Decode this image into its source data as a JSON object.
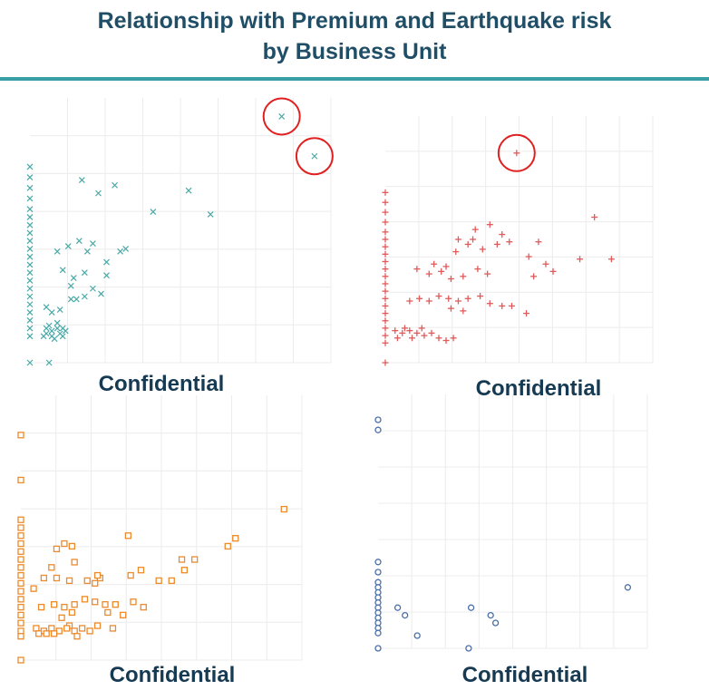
{
  "header": {
    "title_line1": "Relationship with Premium and Earthquake risk",
    "title_line2": "by Business Unit",
    "rule_color": "#3a9ea5"
  },
  "panels": [
    {
      "caption": "Confidential"
    },
    {
      "caption": "Confidential"
    },
    {
      "caption": "Confidential"
    },
    {
      "caption": "Confidential"
    }
  ],
  "chart_data": [
    {
      "type": "scatter",
      "marker": "x",
      "color": "#4aa9a6",
      "grid": true,
      "highlighted_outliers": [
        [
          9.2,
          9.3
        ],
        [
          10.4,
          7.8
        ]
      ],
      "points": [
        [
          0,
          7.4
        ],
        [
          0,
          7.0
        ],
        [
          0,
          6.6
        ],
        [
          0,
          6.2
        ],
        [
          0,
          5.8
        ],
        [
          0,
          5.5
        ],
        [
          0,
          5.2
        ],
        [
          0,
          4.9
        ],
        [
          0,
          4.6
        ],
        [
          0,
          4.3
        ],
        [
          0,
          4.0
        ],
        [
          0,
          3.7
        ],
        [
          0,
          3.4
        ],
        [
          0,
          3.1
        ],
        [
          0,
          2.8
        ],
        [
          0,
          2.5
        ],
        [
          0,
          2.2
        ],
        [
          0,
          1.9
        ],
        [
          0,
          1.6
        ],
        [
          0,
          1.3
        ],
        [
          0,
          1.0
        ],
        [
          0,
          0.0
        ],
        [
          1.9,
          6.9
        ],
        [
          2.5,
          6.4
        ],
        [
          3.1,
          6.7
        ],
        [
          4.5,
          5.7
        ],
        [
          5.8,
          6.5
        ],
        [
          6.6,
          5.6
        ],
        [
          1.0,
          4.2
        ],
        [
          1.4,
          4.4
        ],
        [
          1.8,
          4.6
        ],
        [
          2.1,
          4.2
        ],
        [
          2.3,
          4.5
        ],
        [
          2.8,
          3.8
        ],
        [
          3.3,
          4.2
        ],
        [
          3.5,
          4.3
        ],
        [
          1.2,
          3.5
        ],
        [
          1.6,
          3.2
        ],
        [
          2.0,
          3.4
        ],
        [
          2.8,
          3.3
        ],
        [
          1.5,
          2.9
        ],
        [
          2.3,
          2.8
        ],
        [
          2.6,
          2.6
        ],
        [
          1.5,
          2.4
        ],
        [
          1.7,
          2.4
        ],
        [
          1.1,
          2.0
        ],
        [
          0.8,
          1.9
        ],
        [
          0.6,
          2.1
        ],
        [
          2.0,
          2.5
        ],
        [
          0.6,
          1.1
        ],
        [
          0.8,
          1.2
        ],
        [
          1.0,
          1.3
        ],
        [
          1.2,
          1.0
        ],
        [
          0.7,
          1.4
        ],
        [
          1.1,
          1.1
        ],
        [
          0.9,
          0.9
        ],
        [
          1.3,
          1.2
        ],
        [
          0.5,
          1.0
        ],
        [
          1.0,
          1.5
        ],
        [
          0.8,
          1.0
        ],
        [
          1.2,
          1.3
        ],
        [
          0.6,
          1.3
        ],
        [
          0.7,
          0.0
        ]
      ]
    },
    {
      "type": "scatter",
      "marker": "+",
      "color": "#e05a5a",
      "grid": true,
      "highlighted_outliers": [
        [
          5.4,
          8.5
        ]
      ],
      "points": [
        [
          0,
          6.9
        ],
        [
          0,
          6.5
        ],
        [
          0,
          6.1
        ],
        [
          0,
          5.7
        ],
        [
          0,
          5.3
        ],
        [
          0,
          5.0
        ],
        [
          0,
          4.7
        ],
        [
          0,
          4.4
        ],
        [
          0,
          4.1
        ],
        [
          0,
          3.8
        ],
        [
          0,
          3.5
        ],
        [
          0,
          3.2
        ],
        [
          0,
          2.9
        ],
        [
          0,
          2.6
        ],
        [
          0,
          2.3
        ],
        [
          0,
          2.0
        ],
        [
          0,
          1.7
        ],
        [
          0,
          1.4
        ],
        [
          0,
          1.1
        ],
        [
          0,
          0.8
        ],
        [
          0,
          0.0
        ],
        [
          8.6,
          5.9
        ],
        [
          8.0,
          4.2
        ],
        [
          9.3,
          4.2
        ],
        [
          6.6,
          4.0
        ],
        [
          6.9,
          3.7
        ],
        [
          6.1,
          3.5
        ],
        [
          5.9,
          4.3
        ],
        [
          6.3,
          4.9
        ],
        [
          5.1,
          4.9
        ],
        [
          4.8,
          5.2
        ],
        [
          4.3,
          5.6
        ],
        [
          3.7,
          5.4
        ],
        [
          3.6,
          5.0
        ],
        [
          3.0,
          5.0
        ],
        [
          3.4,
          4.8
        ],
        [
          2.9,
          4.5
        ],
        [
          4.0,
          4.6
        ],
        [
          4.6,
          4.8
        ],
        [
          1.3,
          3.8
        ],
        [
          1.8,
          3.6
        ],
        [
          2.3,
          3.7
        ],
        [
          2.7,
          3.4
        ],
        [
          3.2,
          3.5
        ],
        [
          3.8,
          3.8
        ],
        [
          4.2,
          3.6
        ],
        [
          2.5,
          3.9
        ],
        [
          2.0,
          4.0
        ],
        [
          1.0,
          2.5
        ],
        [
          1.4,
          2.6
        ],
        [
          1.8,
          2.5
        ],
        [
          2.2,
          2.7
        ],
        [
          2.6,
          2.6
        ],
        [
          3.0,
          2.5
        ],
        [
          3.4,
          2.6
        ],
        [
          3.9,
          2.7
        ],
        [
          4.3,
          2.4
        ],
        [
          4.8,
          2.3
        ],
        [
          5.2,
          2.3
        ],
        [
          5.8,
          2.0
        ],
        [
          3.2,
          2.1
        ],
        [
          2.7,
          2.2
        ],
        [
          0.4,
          1.3
        ],
        [
          0.7,
          1.2
        ],
        [
          1.0,
          1.3
        ],
        [
          1.3,
          1.2
        ],
        [
          1.6,
          1.1
        ],
        [
          1.9,
          1.2
        ],
        [
          2.2,
          1.0
        ],
        [
          2.5,
          0.9
        ],
        [
          2.8,
          1.0
        ],
        [
          0.5,
          1.0
        ],
        [
          1.1,
          1.0
        ],
        [
          0.8,
          1.4
        ],
        [
          1.5,
          1.4
        ]
      ]
    },
    {
      "type": "scatter",
      "marker": "square",
      "color": "#ed8a2a",
      "grid": true,
      "points": [
        [
          0,
          8.5
        ],
        [
          0,
          6.8
        ],
        [
          0,
          5.3
        ],
        [
          0,
          5.0
        ],
        [
          0,
          4.7
        ],
        [
          0,
          4.4
        ],
        [
          0,
          4.1
        ],
        [
          0,
          3.8
        ],
        [
          0,
          3.5
        ],
        [
          0,
          3.2
        ],
        [
          0,
          2.9
        ],
        [
          0,
          2.6
        ],
        [
          0,
          2.3
        ],
        [
          0,
          2.0
        ],
        [
          0,
          1.7
        ],
        [
          0,
          1.4
        ],
        [
          0,
          1.1
        ],
        [
          0,
          0.9
        ],
        [
          0,
          0.0
        ],
        [
          10.3,
          5.7
        ],
        [
          8.4,
          4.6
        ],
        [
          8.1,
          4.3
        ],
        [
          4.2,
          4.7
        ],
        [
          2.0,
          4.3
        ],
        [
          1.4,
          4.2
        ],
        [
          1.7,
          4.4
        ],
        [
          4.7,
          3.4
        ],
        [
          6.3,
          3.8
        ],
        [
          6.8,
          3.8
        ],
        [
          6.4,
          3.4
        ],
        [
          2.1,
          3.7
        ],
        [
          1.2,
          3.5
        ],
        [
          2.6,
          3.0
        ],
        [
          3.1,
          3.1
        ],
        [
          3.0,
          3.2
        ],
        [
          2.9,
          2.9
        ],
        [
          1.4,
          3.1
        ],
        [
          1.9,
          3.0
        ],
        [
          0.5,
          2.7
        ],
        [
          0.9,
          3.1
        ],
        [
          5.9,
          3.0
        ],
        [
          5.4,
          3.0
        ],
        [
          4.3,
          3.2
        ],
        [
          0.8,
          2.0
        ],
        [
          1.3,
          2.1
        ],
        [
          1.7,
          2.0
        ],
        [
          2.1,
          2.1
        ],
        [
          2.5,
          2.3
        ],
        [
          2.9,
          2.2
        ],
        [
          3.3,
          2.1
        ],
        [
          3.7,
          2.1
        ],
        [
          4.4,
          2.2
        ],
        [
          4.8,
          2.0
        ],
        [
          4.0,
          1.7
        ],
        [
          2.0,
          1.8
        ],
        [
          1.6,
          1.6
        ],
        [
          1.9,
          1.3
        ],
        [
          3.4,
          1.8
        ],
        [
          3.6,
          1.2
        ],
        [
          0.6,
          1.2
        ],
        [
          0.9,
          1.1
        ],
        [
          1.2,
          1.2
        ],
        [
          1.5,
          1.1
        ],
        [
          1.8,
          1.2
        ],
        [
          2.1,
          1.1
        ],
        [
          2.4,
          1.2
        ],
        [
          2.7,
          1.1
        ],
        [
          3.0,
          1.3
        ],
        [
          0.7,
          1.0
        ],
        [
          1.0,
          1.0
        ],
        [
          1.3,
          1.0
        ],
        [
          2.2,
          0.9
        ]
      ]
    },
    {
      "type": "scatter",
      "marker": "circle",
      "color": "#4a6fa8",
      "grid": true,
      "points": [
        [
          0,
          9.0
        ],
        [
          0,
          8.6
        ],
        [
          0,
          3.4
        ],
        [
          0,
          3.0
        ],
        [
          0,
          2.6
        ],
        [
          0,
          2.4
        ],
        [
          0,
          2.2
        ],
        [
          0,
          2.0
        ],
        [
          0,
          1.8
        ],
        [
          0,
          1.6
        ],
        [
          0,
          1.4
        ],
        [
          0,
          1.2
        ],
        [
          0,
          1.0
        ],
        [
          0,
          0.8
        ],
        [
          0,
          0.6
        ],
        [
          0,
          0.0
        ],
        [
          10.2,
          2.4
        ],
        [
          3.8,
          1.6
        ],
        [
          4.6,
          1.3
        ],
        [
          4.8,
          1.0
        ],
        [
          0.8,
          1.6
        ],
        [
          1.1,
          1.3
        ],
        [
          1.6,
          0.5
        ],
        [
          3.7,
          0.0
        ]
      ]
    }
  ]
}
